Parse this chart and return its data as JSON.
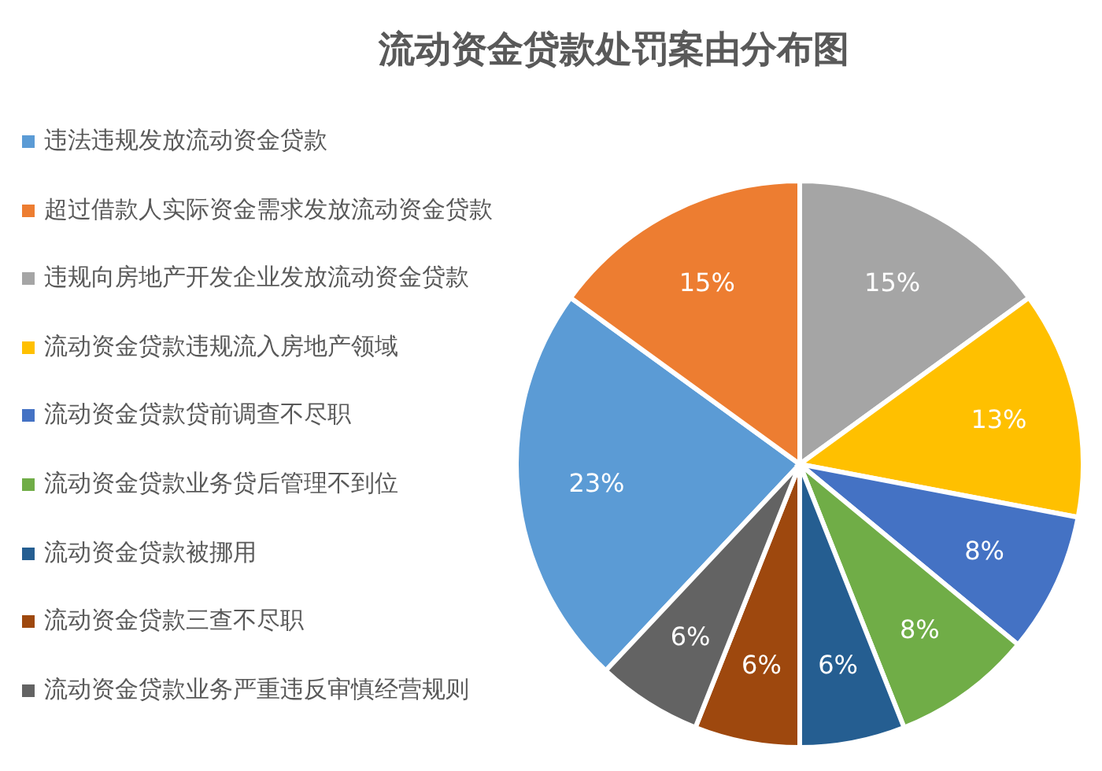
{
  "chart_data": {
    "type": "pie",
    "title": "流动资金贷款处罚案由分布图",
    "categories": [
      "违法违规发放流动资金贷款",
      "超过借款人实际资金需求发放流动资金贷款",
      "违规向房地产开发企业发放流动资金贷款",
      "流动资金贷款违规流入房地产领域",
      "流动资金贷款贷前调查不尽职",
      "流动资金贷款业务贷后管理不到位",
      "流动资金贷款被挪用",
      "流动资金贷款三查不尽职",
      "流动资金贷款业务严重违反审慎经营规则"
    ],
    "values": [
      23,
      15,
      15,
      13,
      8,
      8,
      6,
      6,
      6
    ],
    "value_labels": [
      "23%",
      "15%",
      "15%",
      "13%",
      "8%",
      "8%",
      "6%",
      "6%",
      "6%"
    ],
    "colors": [
      "#5b9bd5",
      "#ed7d31",
      "#a5a5a5",
      "#ffc000",
      "#4472c4",
      "#70ad47",
      "#255e91",
      "#9e480e",
      "#636363"
    ],
    "legend": "left"
  }
}
